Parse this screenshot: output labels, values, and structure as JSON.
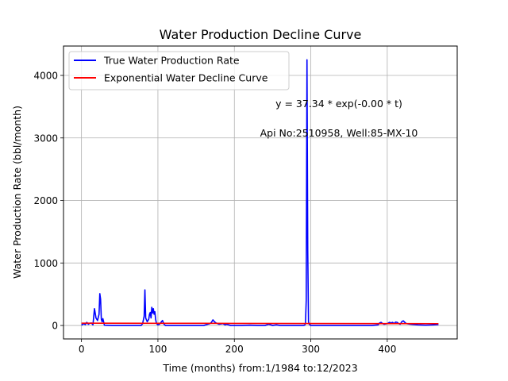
{
  "chart_data": {
    "type": "line",
    "title": "Water Production Decline Curve",
    "xlabel": "Time (months) from:1/1984 to:12/2023",
    "ylabel": "Water Production Rate (bbl/month)",
    "xlim": [
      -23.5,
      491.5
    ],
    "ylim": [
      -215,
      4470
    ],
    "xticks": [
      0,
      100,
      200,
      300,
      400
    ],
    "yticks": [
      0,
      1000,
      2000,
      3000,
      4000
    ],
    "grid": true,
    "legend_position": "top-left",
    "annotations": [
      "y = 37.34 * exp(-0.00 * t)",
      "Api No:2510958, Well:85-MX-10"
    ],
    "series": [
      {
        "name": "True Water Production Rate",
        "color": "#0000ff",
        "x": [
          0,
          3,
          5,
          7,
          9,
          11,
          13,
          15,
          17,
          19,
          21,
          23,
          24,
          25,
          26,
          27,
          28,
          30,
          40,
          50,
          60,
          70,
          78,
          80,
          82,
          83,
          84,
          86,
          88,
          89,
          90,
          91,
          92,
          93,
          94,
          95,
          96,
          97,
          98,
          99,
          100,
          102,
          104,
          106,
          108,
          110,
          120,
          140,
          160,
          165,
          168,
          170,
          172,
          174,
          176,
          180,
          185,
          188,
          190,
          195,
          200,
          210,
          220,
          230,
          240,
          245,
          250,
          255,
          260,
          270,
          280,
          290,
          292,
          293,
          294,
          295,
          296,
          297,
          298,
          300,
          320,
          350,
          380,
          388,
          390,
          392,
          394,
          396,
          400,
          403,
          405,
          407,
          409,
          411,
          413,
          415,
          417,
          419,
          421,
          423,
          425,
          430,
          440,
          450,
          460,
          467
        ],
        "values": [
          5,
          30,
          15,
          50,
          20,
          35,
          40,
          10,
          270,
          120,
          80,
          180,
          510,
          420,
          100,
          60,
          110,
          5,
          0,
          0,
          0,
          0,
          0,
          30,
          150,
          570,
          120,
          60,
          100,
          180,
          210,
          120,
          290,
          200,
          270,
          180,
          220,
          100,
          40,
          20,
          10,
          20,
          50,
          80,
          20,
          0,
          0,
          0,
          0,
          20,
          30,
          50,
          90,
          60,
          40,
          20,
          30,
          10,
          20,
          0,
          0,
          0,
          5,
          0,
          0,
          20,
          0,
          10,
          0,
          0,
          0,
          0,
          5,
          30,
          400,
          4250,
          1200,
          60,
          20,
          0,
          0,
          0,
          0,
          10,
          40,
          50,
          30,
          20,
          30,
          50,
          40,
          50,
          30,
          55,
          50,
          30,
          20,
          60,
          75,
          50,
          30,
          20,
          10,
          5,
          10,
          15
        ]
      },
      {
        "name": "Exponential Water Decline Curve",
        "color": "#ff0000",
        "x": [
          0,
          100,
          200,
          300,
          400,
          467
        ],
        "values": [
          37.3,
          35.5,
          33.8,
          32.2,
          30.6,
          29.5
        ]
      }
    ]
  }
}
